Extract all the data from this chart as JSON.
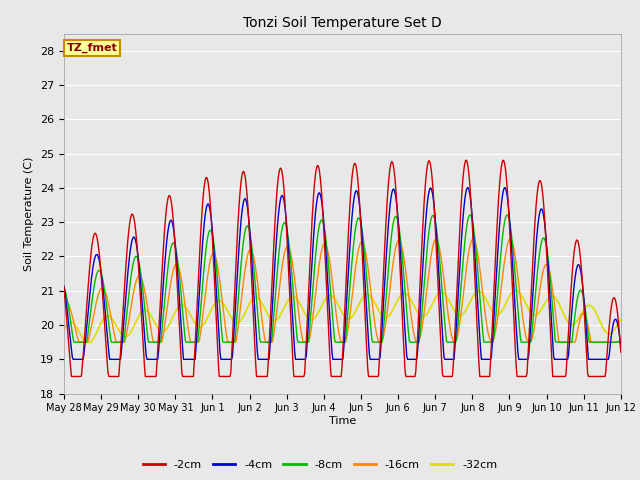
{
  "title": "Tonzi Soil Temperature Set D",
  "xlabel": "Time",
  "ylabel": "Soil Temperature (C)",
  "ylim": [
    18.0,
    28.5
  ],
  "yticks": [
    18.0,
    19.0,
    20.0,
    21.0,
    22.0,
    23.0,
    24.0,
    25.0,
    26.0,
    27.0,
    28.0
  ],
  "plot_bg": "#e8e8e8",
  "fig_bg": "#e8e8e8",
  "series_colors": [
    "#cc0000",
    "#0000cc",
    "#00bb00",
    "#ff8800",
    "#dddd00"
  ],
  "series_labels": [
    "-2cm",
    "-4cm",
    "-8cm",
    "-16cm",
    "-32cm"
  ],
  "annotation_text": "TZ_fmet",
  "annotation_bg": "#ffff99",
  "annotation_border": "#cc8800",
  "x_tick_labels": [
    "May 28",
    "May 29",
    "May 30",
    "May 31",
    "Jun 1",
    "Jun 2",
    "Jun 3",
    "Jun 4",
    "Jun 5",
    "Jun 6",
    "Jun 7",
    "Jun 8",
    "Jun 9",
    "Jun 10",
    "Jun 11",
    "Jun 12"
  ],
  "n_points": 672,
  "n_days": 15
}
